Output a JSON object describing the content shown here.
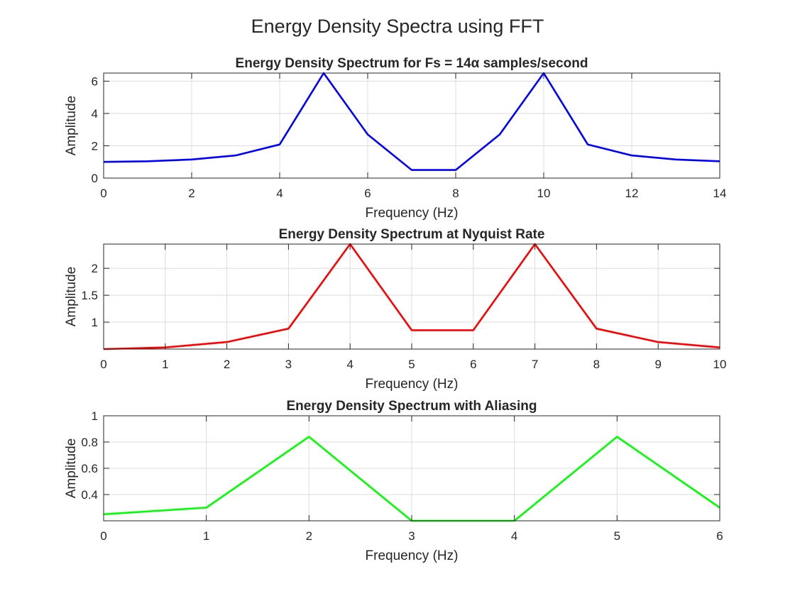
{
  "figure": {
    "title": "Energy Density Spectra using FFT"
  },
  "chart_data": [
    {
      "type": "line",
      "title": "Energy Density Spectrum for Fs = 14α samples/second",
      "xlabel": "Frequency (Hz)",
      "ylabel": "Amplitude",
      "xlim": [
        0,
        14
      ],
      "ylim": [
        0,
        6.5
      ],
      "xticks": [
        0,
        2,
        4,
        6,
        8,
        10,
        12,
        14
      ],
      "yticks": [
        0,
        2,
        4,
        6
      ],
      "grid": true,
      "color": "#0000ff",
      "series": [
        {
          "x": [
            0,
            1,
            2,
            3,
            4,
            5,
            6,
            7,
            8,
            9,
            10,
            11,
            12,
            13,
            14
          ],
          "values": [
            1.0,
            1.04,
            1.15,
            1.4,
            2.08,
            6.5,
            2.7,
            0.5,
            0.5,
            2.7,
            6.5,
            2.08,
            1.4,
            1.15,
            1.04
          ]
        }
      ]
    },
    {
      "type": "line",
      "title": "Energy Density Spectrum at Nyquist Rate",
      "xlabel": "Frequency (Hz)",
      "ylabel": "Amplitude",
      "xlim": [
        0,
        10
      ],
      "ylim": [
        0.5,
        2.45
      ],
      "xticks": [
        0,
        1,
        2,
        3,
        4,
        5,
        6,
        7,
        8,
        9,
        10
      ],
      "yticks": [
        1,
        1.5,
        2
      ],
      "grid": true,
      "color": "#ff0000",
      "series": [
        {
          "x": [
            0,
            1,
            2,
            3,
            4,
            5,
            6,
            7,
            8,
            9,
            10
          ],
          "values": [
            0.5,
            0.53,
            0.63,
            0.88,
            2.45,
            0.85,
            0.85,
            2.45,
            0.88,
            0.63,
            0.53
          ]
        }
      ]
    },
    {
      "type": "line",
      "title": "Energy Density Spectrum with Aliasing",
      "xlabel": "Frequency (Hz)",
      "ylabel": "Amplitude",
      "xlim": [
        0,
        6
      ],
      "ylim": [
        0.2,
        1.0
      ],
      "xticks": [
        0,
        1,
        2,
        3,
        4,
        5,
        6
      ],
      "yticks": [
        0.4,
        0.6,
        0.8,
        1
      ],
      "grid": true,
      "color": "#00ff00",
      "series": [
        {
          "x": [
            0,
            1,
            2,
            3,
            4,
            5,
            6
          ],
          "values": [
            0.25,
            0.3,
            0.84,
            0.2,
            0.2,
            0.84,
            0.3
          ]
        }
      ]
    }
  ]
}
